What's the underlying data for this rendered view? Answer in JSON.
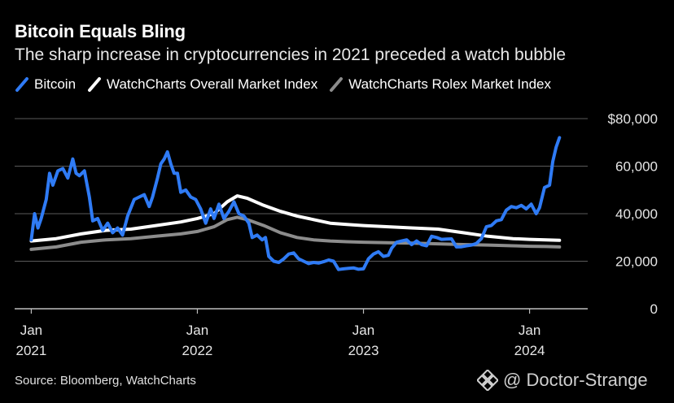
{
  "title": "Bitcoin Equals Bling",
  "subtitle": "The sharp increase in cryptocurrencies in 2021 preceded a watch bubble",
  "source": "Source: Bloomberg, WatchCharts",
  "watermark": "@ Doctor-Strange",
  "colors": {
    "background": "#000000",
    "bitcoin": "#2f7bf5",
    "overall": "#ffffff",
    "rolex": "#8c8c8c",
    "grid": "#5a5a5a"
  },
  "chart_data": {
    "type": "line",
    "x_axis": {
      "ticks": [
        {
          "x": 2021.0,
          "line1": "Jan",
          "line2": "2021"
        },
        {
          "x": 2022.0,
          "line1": "Jan",
          "line2": "2022"
        },
        {
          "x": 2023.0,
          "line1": "Jan",
          "line2": "2023"
        },
        {
          "x": 2024.0,
          "line1": "Jan",
          "line2": "2024"
        }
      ],
      "range": [
        2020.9,
        2024.35
      ]
    },
    "y_axis": {
      "range": [
        0,
        80000
      ],
      "ticks": [
        {
          "value": 0,
          "label": "0"
        },
        {
          "value": 20000,
          "label": "20,000"
        },
        {
          "value": 40000,
          "label": "40,000"
        },
        {
          "value": 60000,
          "label": "60,000"
        },
        {
          "value": 80000,
          "label": "$80,000"
        }
      ],
      "grid": true
    },
    "legend_position": "top-left",
    "series": [
      {
        "name": "Bitcoin",
        "color": "#2f7bf5",
        "points": [
          [
            2021.0,
            29000
          ],
          [
            2021.02,
            40000
          ],
          [
            2021.04,
            34000
          ],
          [
            2021.06,
            38000
          ],
          [
            2021.09,
            46000
          ],
          [
            2021.11,
            57000
          ],
          [
            2021.13,
            52000
          ],
          [
            2021.16,
            58000
          ],
          [
            2021.19,
            59000
          ],
          [
            2021.22,
            55000
          ],
          [
            2021.25,
            63000
          ],
          [
            2021.27,
            57000
          ],
          [
            2021.29,
            56000
          ],
          [
            2021.32,
            58000
          ],
          [
            2021.35,
            47000
          ],
          [
            2021.37,
            37000
          ],
          [
            2021.4,
            38000
          ],
          [
            2021.43,
            33000
          ],
          [
            2021.46,
            36000
          ],
          [
            2021.49,
            32000
          ],
          [
            2021.52,
            34000
          ],
          [
            2021.55,
            31000
          ],
          [
            2021.58,
            39000
          ],
          [
            2021.62,
            46000
          ],
          [
            2021.65,
            47000
          ],
          [
            2021.68,
            48000
          ],
          [
            2021.71,
            43000
          ],
          [
            2021.73,
            47000
          ],
          [
            2021.76,
            55000
          ],
          [
            2021.78,
            61000
          ],
          [
            2021.8,
            63000
          ],
          [
            2021.82,
            66000
          ],
          [
            2021.84,
            61000
          ],
          [
            2021.86,
            57000
          ],
          [
            2021.88,
            57000
          ],
          [
            2021.9,
            49000
          ],
          [
            2021.93,
            50000
          ],
          [
            2021.96,
            47000
          ],
          [
            2021.99,
            46000
          ],
          [
            2022.02,
            42000
          ],
          [
            2022.05,
            36000
          ],
          [
            2022.08,
            42000
          ],
          [
            2022.1,
            38000
          ],
          [
            2022.13,
            44000
          ],
          [
            2022.16,
            38000
          ],
          [
            2022.19,
            41000
          ],
          [
            2022.22,
            45000
          ],
          [
            2022.25,
            40000
          ],
          [
            2022.28,
            39000
          ],
          [
            2022.31,
            36000
          ],
          [
            2022.33,
            30000
          ],
          [
            2022.36,
            31000
          ],
          [
            2022.39,
            29000
          ],
          [
            2022.41,
            30000
          ],
          [
            2022.43,
            22000
          ],
          [
            2022.46,
            20000
          ],
          [
            2022.49,
            19500
          ],
          [
            2022.52,
            21000
          ],
          [
            2022.55,
            23000
          ],
          [
            2022.58,
            23500
          ],
          [
            2022.61,
            21000
          ],
          [
            2022.64,
            20000
          ],
          [
            2022.67,
            19000
          ],
          [
            2022.7,
            19500
          ],
          [
            2022.73,
            19200
          ],
          [
            2022.76,
            19800
          ],
          [
            2022.79,
            20500
          ],
          [
            2022.82,
            20000
          ],
          [
            2022.85,
            16500
          ],
          [
            2022.88,
            16800
          ],
          [
            2022.91,
            17000
          ],
          [
            2022.94,
            17200
          ],
          [
            2022.97,
            16600
          ],
          [
            2023.0,
            16800
          ],
          [
            2023.03,
            21000
          ],
          [
            2023.06,
            23000
          ],
          [
            2023.09,
            24000
          ],
          [
            2023.12,
            22000
          ],
          [
            2023.15,
            22500
          ],
          [
            2023.17,
            25500
          ],
          [
            2023.2,
            28000
          ],
          [
            2023.23,
            28500
          ],
          [
            2023.26,
            29000
          ],
          [
            2023.29,
            27000
          ],
          [
            2023.32,
            28500
          ],
          [
            2023.35,
            27000
          ],
          [
            2023.38,
            26500
          ],
          [
            2023.41,
            30500
          ],
          [
            2023.44,
            30000
          ],
          [
            2023.47,
            29200
          ],
          [
            2023.5,
            29300
          ],
          [
            2023.53,
            29400
          ],
          [
            2023.56,
            26000
          ],
          [
            2023.59,
            26100
          ],
          [
            2023.62,
            26500
          ],
          [
            2023.65,
            26800
          ],
          [
            2023.68,
            27500
          ],
          [
            2023.71,
            29500
          ],
          [
            2023.74,
            34500
          ],
          [
            2023.77,
            35000
          ],
          [
            2023.8,
            37000
          ],
          [
            2023.83,
            37500
          ],
          [
            2023.86,
            41500
          ],
          [
            2023.89,
            43000
          ],
          [
            2023.92,
            42500
          ],
          [
            2023.95,
            43500
          ],
          [
            2023.98,
            42000
          ],
          [
            2024.01,
            44000
          ],
          [
            2024.04,
            40000
          ],
          [
            2024.06,
            42500
          ],
          [
            2024.09,
            51000
          ],
          [
            2024.12,
            52000
          ],
          [
            2024.14,
            62000
          ],
          [
            2024.16,
            68000
          ],
          [
            2024.18,
            72000
          ]
        ]
      },
      {
        "name": "WatchCharts Overall Market Index",
        "color": "#ffffff",
        "points": [
          [
            2021.0,
            28500
          ],
          [
            2021.15,
            29500
          ],
          [
            2021.3,
            31500
          ],
          [
            2021.45,
            33000
          ],
          [
            2021.6,
            33500
          ],
          [
            2021.75,
            35000
          ],
          [
            2021.9,
            36500
          ],
          [
            2022.0,
            38000
          ],
          [
            2022.1,
            40000
          ],
          [
            2022.18,
            45000
          ],
          [
            2022.24,
            47500
          ],
          [
            2022.3,
            46500
          ],
          [
            2022.4,
            43500
          ],
          [
            2022.5,
            41000
          ],
          [
            2022.6,
            39000
          ],
          [
            2022.7,
            37500
          ],
          [
            2022.8,
            36000
          ],
          [
            2022.9,
            35500
          ],
          [
            2023.0,
            35000
          ],
          [
            2023.15,
            34500
          ],
          [
            2023.3,
            34000
          ],
          [
            2023.45,
            33500
          ],
          [
            2023.6,
            32000
          ],
          [
            2023.75,
            30500
          ],
          [
            2023.9,
            29500
          ],
          [
            2024.0,
            29200
          ],
          [
            2024.1,
            29000
          ],
          [
            2024.18,
            28800
          ]
        ]
      },
      {
        "name": "WatchCharts Rolex Market Index",
        "color": "#8c8c8c",
        "points": [
          [
            2021.0,
            25000
          ],
          [
            2021.15,
            26000
          ],
          [
            2021.3,
            28000
          ],
          [
            2021.45,
            29000
          ],
          [
            2021.6,
            29500
          ],
          [
            2021.75,
            30500
          ],
          [
            2021.9,
            31500
          ],
          [
            2022.0,
            32500
          ],
          [
            2022.1,
            34500
          ],
          [
            2022.18,
            37500
          ],
          [
            2022.24,
            38500
          ],
          [
            2022.3,
            37500
          ],
          [
            2022.4,
            35000
          ],
          [
            2022.5,
            32000
          ],
          [
            2022.6,
            30000
          ],
          [
            2022.7,
            29000
          ],
          [
            2022.8,
            28500
          ],
          [
            2022.9,
            28200
          ],
          [
            2023.0,
            28000
          ],
          [
            2023.15,
            27800
          ],
          [
            2023.3,
            27600
          ],
          [
            2023.45,
            27300
          ],
          [
            2023.6,
            27000
          ],
          [
            2023.75,
            26800
          ],
          [
            2023.9,
            26500
          ],
          [
            2024.0,
            26300
          ],
          [
            2024.1,
            26200
          ],
          [
            2024.18,
            26000
          ]
        ]
      }
    ]
  }
}
